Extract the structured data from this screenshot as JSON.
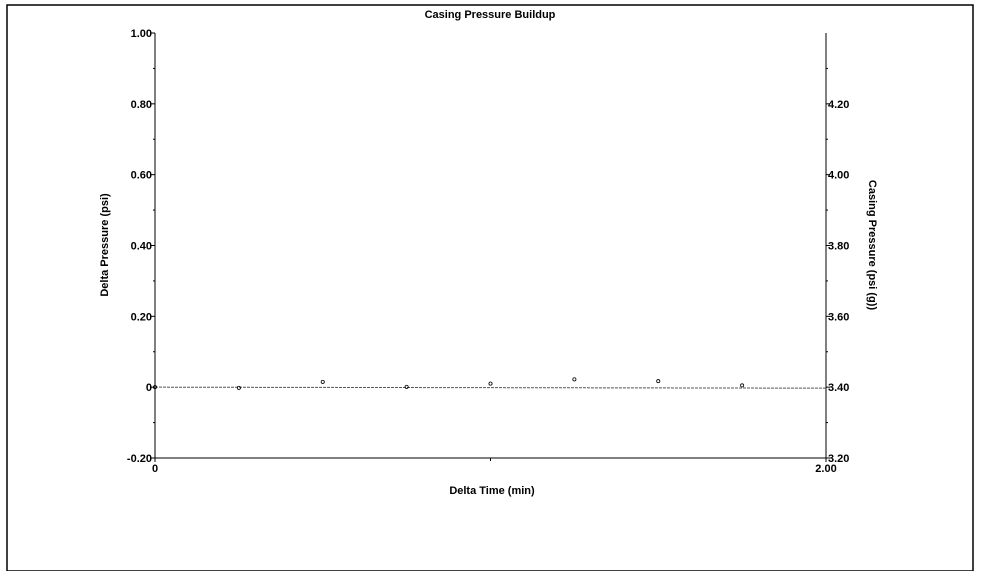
{
  "chart_data": {
    "type": "scatter",
    "title": "Casing Pressure Buildup",
    "xlabel": "Delta Time (min)",
    "ylabel": "Delta Pressure (psi)",
    "y2label": "Casing Pressure (psi (g))",
    "xlim": [
      0,
      2.0
    ],
    "ylim": [
      -0.2,
      1.0
    ],
    "y2lim": [
      3.2,
      4.4
    ],
    "x_ticks": [
      {
        "value": 0,
        "label": "0"
      },
      {
        "value": 2.0,
        "label": "2.00"
      }
    ],
    "y_ticks": [
      {
        "value": -0.2,
        "label": "-0.20"
      },
      {
        "value": 0,
        "label": "0"
      },
      {
        "value": 0.2,
        "label": "0.20"
      },
      {
        "value": 0.4,
        "label": "0.40"
      },
      {
        "value": 0.6,
        "label": "0.60"
      },
      {
        "value": 0.8,
        "label": "0.80"
      },
      {
        "value": 1.0,
        "label": "1.00"
      }
    ],
    "y2_ticks": [
      {
        "value": 3.2,
        "label": "3.20"
      },
      {
        "value": 3.4,
        "label": "3.40"
      },
      {
        "value": 3.6,
        "label": "3.60"
      },
      {
        "value": 3.8,
        "label": "3.80"
      },
      {
        "value": 4.0,
        "label": "4.00"
      },
      {
        "value": 4.2,
        "label": "4.20"
      }
    ],
    "series": [
      {
        "x": [
          0,
          0.25,
          0.5,
          0.75,
          1.0,
          1.25,
          1.5,
          1.75
        ],
        "y": [
          0,
          -0.002,
          0.015,
          0.001,
          0.01,
          0.022,
          0.017,
          0.005
        ]
      }
    ],
    "grid": false,
    "legend": "none"
  },
  "colors": {
    "background": "#ffffff",
    "axis": "#000000",
    "points": "#000000",
    "reference_line": "#555555"
  }
}
